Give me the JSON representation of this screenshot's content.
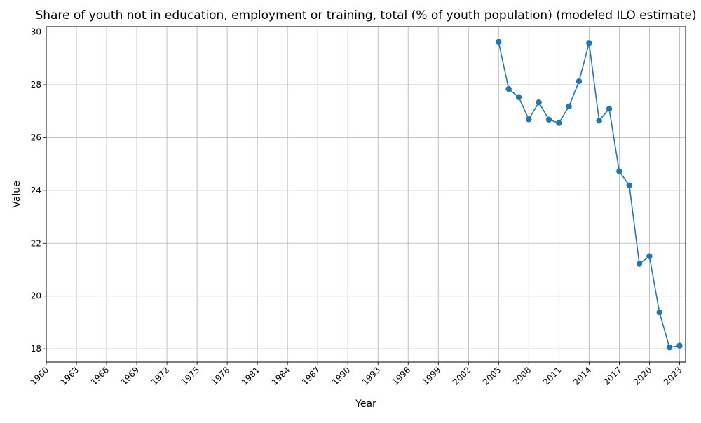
{
  "chart_data": {
    "type": "line",
    "title": "Share of youth not in education, employment or training, total (% of youth population)  (modeled ILO estimate)",
    "xlabel": "Year",
    "ylabel": "Value",
    "xlim": [
      1960,
      2023.6
    ],
    "ylim": [
      17.5,
      30.2
    ],
    "x_ticks": [
      1960,
      1963,
      1966,
      1969,
      1972,
      1975,
      1978,
      1981,
      1984,
      1987,
      1990,
      1993,
      1996,
      1999,
      2002,
      2005,
      2008,
      2011,
      2014,
      2017,
      2020,
      2023
    ],
    "y_ticks": [
      18,
      20,
      22,
      24,
      26,
      28,
      30
    ],
    "grid": true,
    "series": [
      {
        "color": "#1f77b4",
        "marker": "circle",
        "x": [
          2005,
          2006,
          2007,
          2008,
          2009,
          2010,
          2011,
          2012,
          2013,
          2014,
          2015,
          2016,
          2017,
          2018,
          2019,
          2020,
          2021,
          2022,
          2023
        ],
        "values": [
          29.62,
          27.84,
          27.53,
          26.69,
          27.33,
          26.68,
          26.55,
          27.18,
          28.13,
          29.58,
          26.64,
          27.09,
          24.72,
          24.19,
          21.22,
          21.51,
          19.38,
          18.05,
          18.12
        ]
      }
    ]
  }
}
